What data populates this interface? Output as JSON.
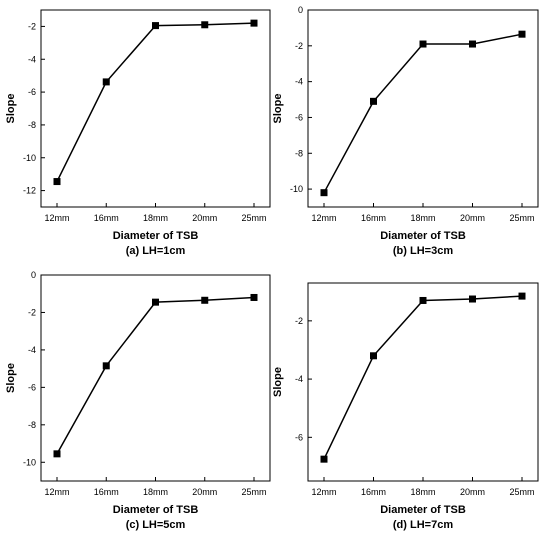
{
  "chart_data": [
    {
      "type": "line",
      "caption": "(a) LH=1cm",
      "xlabel": "Diameter of TSB",
      "ylabel": "Slope",
      "categories": [
        "12mm",
        "16mm",
        "18mm",
        "20mm",
        "25mm"
      ],
      "values": [
        -11.45,
        -5.38,
        -1.95,
        -1.9,
        -1.8
      ],
      "ylim": [
        -13,
        -1
      ],
      "yticks": [
        -12,
        -10,
        -8,
        -6,
        -4,
        -2
      ],
      "grid": false,
      "marker": "square",
      "color": "#000000"
    },
    {
      "type": "line",
      "caption": "(b) LH=3cm",
      "xlabel": "Diameter of TSB",
      "ylabel": "Slope",
      "categories": [
        "12mm",
        "16mm",
        "18mm",
        "20mm",
        "25mm"
      ],
      "values": [
        -10.2,
        -5.1,
        -1.9,
        -1.9,
        -1.35
      ],
      "ylim": [
        -11,
        0
      ],
      "yticks": [
        -10,
        -8,
        -6,
        -4,
        -2,
        0
      ],
      "grid": false,
      "marker": "square",
      "color": "#000000"
    },
    {
      "type": "line",
      "caption": "(c) LH=5cm",
      "xlabel": "Diameter of TSB",
      "ylabel": "Slope",
      "categories": [
        "12mm",
        "16mm",
        "18mm",
        "20mm",
        "25mm"
      ],
      "values": [
        -9.55,
        -4.85,
        -1.45,
        -1.35,
        -1.2
      ],
      "ylim": [
        -11,
        0
      ],
      "yticks": [
        -10,
        -8,
        -6,
        -4,
        -2,
        0
      ],
      "grid": false,
      "marker": "square",
      "color": "#000000"
    },
    {
      "type": "line",
      "caption": "(d) LH=7cm",
      "xlabel": "Diameter of TSB",
      "ylabel": "Slope",
      "categories": [
        "12mm",
        "16mm",
        "18mm",
        "20mm",
        "25mm"
      ],
      "values": [
        -6.75,
        -3.2,
        -1.3,
        -1.25,
        -1.15
      ],
      "ylim": [
        -7.5,
        -0.7
      ],
      "yticks": [
        -6,
        -4,
        -2
      ],
      "grid": false,
      "marker": "square",
      "color": "#000000"
    }
  ]
}
